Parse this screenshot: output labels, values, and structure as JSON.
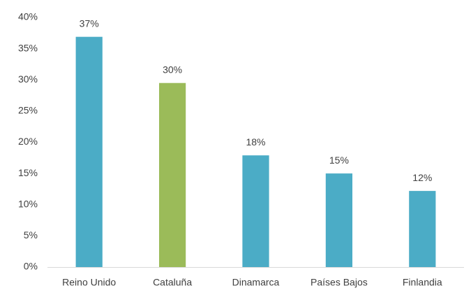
{
  "chart_data": {
    "type": "bar",
    "categories": [
      "Reino Unido",
      "Cataluña",
      "Dinamarca",
      "Países Bajos",
      "Finlandia"
    ],
    "values": [
      36.9,
      29.5,
      17.9,
      15.0,
      12.2
    ],
    "value_labels": [
      "37%",
      "30%",
      "18%",
      "15%",
      "12%"
    ],
    "colors": [
      "#4bacc6",
      "#9bbb59",
      "#4bacc6",
      "#4bacc6",
      "#4bacc6"
    ],
    "ylim": [
      0,
      40
    ],
    "yticks": [
      {
        "value": 0,
        "label": "0%"
      },
      {
        "value": 5,
        "label": "5%"
      },
      {
        "value": 10,
        "label": "10%"
      },
      {
        "value": 15,
        "label": "15%"
      },
      {
        "value": 20,
        "label": "20%"
      },
      {
        "value": 25,
        "label": "25%"
      },
      {
        "value": 30,
        "label": "30%"
      },
      {
        "value": 35,
        "label": "35%"
      },
      {
        "value": 40,
        "label": "40%"
      }
    ],
    "grid": false
  }
}
